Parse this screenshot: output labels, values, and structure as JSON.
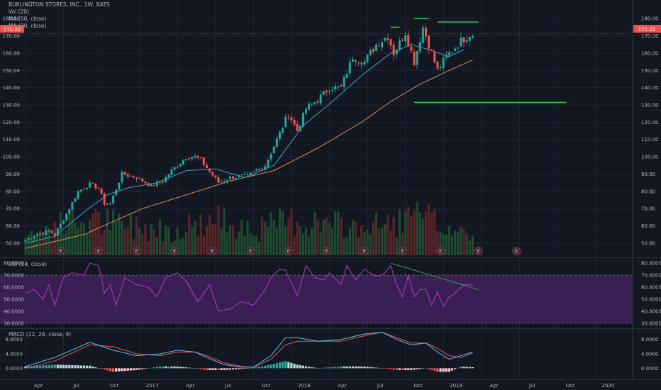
{
  "header": {
    "title": "BURLINGTON STORES, INC., 1W, BATS",
    "legends": [
      "Vol (20)",
      "MA (50, close)",
      "MA (20, close)"
    ],
    "last_price": "171.22"
  },
  "colors": {
    "background": "#131722",
    "grid": "#1f2533",
    "up": "#26a69a",
    "down": "#ef5350",
    "ma20": "#3ea0c8",
    "ma50": "#e08850",
    "trendline": "#26c940",
    "rsi_line": "#b03ac8",
    "rsi_band": "#3a1f55",
    "macd_line": "#4fc3f7",
    "signal_line": "#ef5350",
    "price_line": "#ef5350",
    "text": "#b2b5be"
  },
  "price_axis": {
    "ticks": [
      "180.00",
      "170.00",
      "160.00",
      "150.00",
      "140.00",
      "130.00",
      "120.00",
      "110.00",
      "100.00",
      "90.00",
      "80.00",
      "70.00",
      "60.00",
      "50.00"
    ],
    "tick_values": [
      180,
      170,
      160,
      150,
      140,
      130,
      120,
      110,
      100,
      90,
      80,
      70,
      60,
      50
    ],
    "range": [
      43,
      185
    ]
  },
  "earnings": {
    "label": "E",
    "count": 13
  },
  "rsi": {
    "label": "RSI (14, close)",
    "ticks": [
      "80.0000",
      "70.0000",
      "60.0000",
      "50.0000",
      "40.0000",
      "30.0000"
    ],
    "tick_values": [
      80,
      70,
      60,
      50,
      40,
      30
    ],
    "band": [
      30,
      70
    ],
    "range": [
      27,
      83
    ]
  },
  "macd": {
    "label": "MACD (12, 26, close, 9)",
    "ticks": [
      "8.0000",
      "4.0000",
      "0.0000"
    ],
    "tick_values": [
      8,
      4,
      0
    ],
    "range": [
      -2.5,
      10.5
    ]
  },
  "time_axis": {
    "labels": [
      "Apr",
      "Jul",
      "Oct",
      "2017",
      "Apr",
      "Jul",
      "Oct",
      "2018",
      "Apr",
      "Jul",
      "Oct",
      "2019",
      "Apr",
      "Jul",
      "Oct",
      "2020"
    ],
    "weeks": [
      0,
      13,
      26,
      39,
      52,
      65,
      78,
      91,
      104,
      117,
      130,
      143,
      156,
      169,
      182,
      195
    ]
  },
  "chart_data": {
    "type": "candlestick",
    "interval": "1W",
    "symbol": "BURLINGTON STORES, INC., BATS",
    "series_keypoints": {
      "close": [
        [
          0,
          52
        ],
        [
          4,
          55
        ],
        [
          8,
          57
        ],
        [
          10,
          55
        ],
        [
          14,
          67
        ],
        [
          18,
          80
        ],
        [
          22,
          84
        ],
        [
          25,
          82
        ],
        [
          27,
          73
        ],
        [
          29,
          73
        ],
        [
          33,
          90
        ],
        [
          38,
          88
        ],
        [
          43,
          83
        ],
        [
          47,
          86
        ],
        [
          50,
          92
        ],
        [
          55,
          100
        ],
        [
          58,
          100
        ],
        [
          60,
          98
        ],
        [
          66,
          85
        ],
        [
          70,
          88
        ],
        [
          76,
          89
        ],
        [
          82,
          95
        ],
        [
          86,
          110
        ],
        [
          90,
          125
        ],
        [
          93,
          115
        ],
        [
          96,
          128
        ],
        [
          100,
          133
        ],
        [
          104,
          140
        ],
        [
          108,
          140
        ],
        [
          112,
          158
        ],
        [
          116,
          155
        ],
        [
          120,
          165
        ],
        [
          124,
          170
        ],
        [
          126,
          160
        ],
        [
          130,
          172
        ],
        [
          133,
          155
        ],
        [
          136,
          175
        ],
        [
          138,
          165
        ],
        [
          141,
          150
        ],
        [
          144,
          158
        ],
        [
          149,
          167
        ],
        [
          152,
          171
        ]
      ],
      "ma20": [
        [
          0,
          50
        ],
        [
          10,
          54
        ],
        [
          20,
          68
        ],
        [
          28,
          78
        ],
        [
          35,
          82
        ],
        [
          45,
          85
        ],
        [
          55,
          92
        ],
        [
          65,
          93
        ],
        [
          75,
          88
        ],
        [
          85,
          95
        ],
        [
          95,
          118
        ],
        [
          105,
          132
        ],
        [
          115,
          147
        ],
        [
          125,
          160
        ],
        [
          132,
          165
        ],
        [
          138,
          162
        ],
        [
          145,
          158
        ],
        [
          150,
          162
        ]
      ],
      "ma50": [
        [
          0,
          47
        ],
        [
          20,
          55
        ],
        [
          40,
          70
        ],
        [
          55,
          78
        ],
        [
          70,
          86
        ],
        [
          85,
          92
        ],
        [
          100,
          105
        ],
        [
          115,
          120
        ],
        [
          125,
          132
        ],
        [
          135,
          142
        ],
        [
          145,
          150
        ],
        [
          153,
          156
        ]
      ],
      "volume_level": [
        [
          0,
          0.3
        ],
        [
          10,
          0.45
        ],
        [
          20,
          0.55
        ],
        [
          30,
          0.5
        ],
        [
          40,
          0.45
        ],
        [
          50,
          0.4
        ],
        [
          60,
          0.5
        ],
        [
          70,
          0.55
        ],
        [
          80,
          0.4
        ],
        [
          90,
          0.55
        ],
        [
          100,
          0.5
        ],
        [
          110,
          0.45
        ],
        [
          120,
          0.45
        ],
        [
          130,
          0.55
        ],
        [
          135,
          0.6
        ],
        [
          140,
          0.5
        ],
        [
          153,
          0.3
        ]
      ],
      "rsi": [
        [
          0,
          55
        ],
        [
          3,
          58
        ],
        [
          6,
          50
        ],
        [
          8,
          62
        ],
        [
          10,
          45
        ],
        [
          13,
          68
        ],
        [
          16,
          72
        ],
        [
          20,
          70
        ],
        [
          22,
          80
        ],
        [
          25,
          78
        ],
        [
          27,
          55
        ],
        [
          29,
          62
        ],
        [
          31,
          45
        ],
        [
          34,
          68
        ],
        [
          38,
          62
        ],
        [
          42,
          60
        ],
        [
          45,
          52
        ],
        [
          48,
          68
        ],
        [
          52,
          72
        ],
        [
          55,
          65
        ],
        [
          59,
          48
        ],
        [
          63,
          62
        ],
        [
          66,
          40
        ],
        [
          70,
          42
        ],
        [
          74,
          48
        ],
        [
          78,
          45
        ],
        [
          82,
          58
        ],
        [
          84,
          68
        ],
        [
          87,
          75
        ],
        [
          89,
          74
        ],
        [
          93,
          53
        ],
        [
          96,
          78
        ],
        [
          99,
          68
        ],
        [
          102,
          66
        ],
        [
          104,
          72
        ],
        [
          108,
          62
        ],
        [
          110,
          78
        ],
        [
          113,
          66
        ],
        [
          116,
          75
        ],
        [
          119,
          70
        ],
        [
          121,
          69
        ],
        [
          123,
          72
        ],
        [
          125,
          78
        ],
        [
          127,
          62
        ],
        [
          129,
          52
        ],
        [
          131,
          70
        ],
        [
          133,
          52
        ],
        [
          135,
          58
        ],
        [
          137,
          58
        ],
        [
          139,
          45
        ],
        [
          141,
          56
        ],
        [
          143,
          44
        ],
        [
          145,
          52
        ],
        [
          147,
          55
        ],
        [
          150,
          62
        ],
        [
          153,
          62
        ]
      ],
      "macd": [
        [
          0,
          0.5
        ],
        [
          10,
          3
        ],
        [
          22,
          7.2
        ],
        [
          30,
          5
        ],
        [
          38,
          3.5
        ],
        [
          46,
          4
        ],
        [
          52,
          5
        ],
        [
          58,
          4.5
        ],
        [
          62,
          3
        ],
        [
          68,
          1
        ],
        [
          74,
          0.3
        ],
        [
          78,
          0.3
        ],
        [
          84,
          3.5
        ],
        [
          89,
          8.5
        ],
        [
          93,
          8.5
        ],
        [
          100,
          7.5
        ],
        [
          108,
          8
        ],
        [
          116,
          9.5
        ],
        [
          122,
          10
        ],
        [
          127,
          8
        ],
        [
          132,
          6.5
        ],
        [
          137,
          7
        ],
        [
          141,
          4.5
        ],
        [
          145,
          2.5
        ],
        [
          149,
          3.5
        ],
        [
          153,
          4.5
        ]
      ],
      "signal": [
        [
          0,
          0
        ],
        [
          10,
          2
        ],
        [
          22,
          6.5
        ],
        [
          30,
          6
        ],
        [
          38,
          4
        ],
        [
          46,
          3.5
        ],
        [
          52,
          4.5
        ],
        [
          58,
          4.5
        ],
        [
          62,
          3.5
        ],
        [
          68,
          1.5
        ],
        [
          74,
          0.5
        ],
        [
          78,
          0.2
        ],
        [
          84,
          2.5
        ],
        [
          89,
          6.5
        ],
        [
          93,
          7.5
        ],
        [
          100,
          7.5
        ],
        [
          108,
          7.5
        ],
        [
          116,
          9
        ],
        [
          122,
          10
        ],
        [
          127,
          8.5
        ],
        [
          132,
          7
        ],
        [
          137,
          7
        ],
        [
          141,
          5.5
        ],
        [
          145,
          3.5
        ],
        [
          149,
          3
        ],
        [
          153,
          4.2
        ]
      ]
    },
    "horizontal_lines": [
      {
        "name": "resistance-1",
        "value": 175,
        "start_week": 125,
        "end_week": 128
      },
      {
        "name": "resistance-2",
        "value": 180,
        "start_week": 133,
        "end_week": 138
      },
      {
        "name": "resistance-3",
        "value": 178,
        "start_week": 141,
        "end_week": 155
      },
      {
        "name": "support",
        "value": 131.5,
        "start_week": 133,
        "end_week": 185
      }
    ],
    "rsi_trendline": {
      "from": [
        125,
        80
      ],
      "to": [
        155,
        58
      ]
    }
  }
}
